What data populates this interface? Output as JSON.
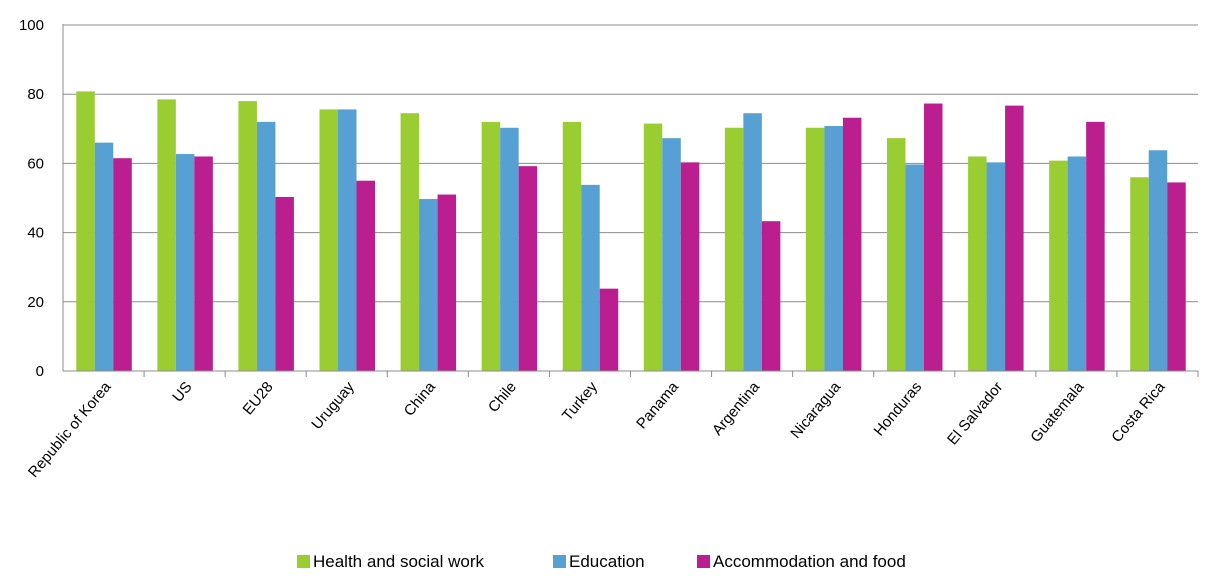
{
  "chart_data": {
    "type": "bar",
    "title": "",
    "xlabel": "",
    "ylabel": "",
    "ylim": [
      0,
      100
    ],
    "yticks": [
      0,
      20,
      40,
      60,
      80,
      100
    ],
    "grid": true,
    "legend_position": "bottom",
    "categories": [
      "Republic of Korea",
      "US",
      "EU28",
      "Uruguay",
      "China",
      "Chile",
      "Turkey",
      "Panama",
      "Argentina",
      "Nicaragua",
      "Honduras",
      "El Salvador",
      "Guatemala",
      "Costa Rica"
    ],
    "series": [
      {
        "name": "Health and social work",
        "color": "#9acd32",
        "values": [
          80.8,
          78.5,
          78.0,
          75.6,
          74.5,
          72.0,
          72.0,
          71.5,
          70.3,
          70.3,
          67.3,
          62.0,
          60.8,
          56.0
        ]
      },
      {
        "name": "Education",
        "color": "#56a0d3",
        "values": [
          66.0,
          62.7,
          72.0,
          75.6,
          49.7,
          70.3,
          53.8,
          67.3,
          74.5,
          70.8,
          59.7,
          60.3,
          62.0,
          63.8
        ]
      },
      {
        "name": "Accommodation and food",
        "color": "#bb1e8f",
        "values": [
          61.5,
          62.0,
          50.3,
          55.0,
          51.0,
          59.2,
          23.8,
          60.3,
          43.3,
          73.2,
          77.3,
          76.7,
          72.0,
          54.5
        ]
      }
    ]
  }
}
